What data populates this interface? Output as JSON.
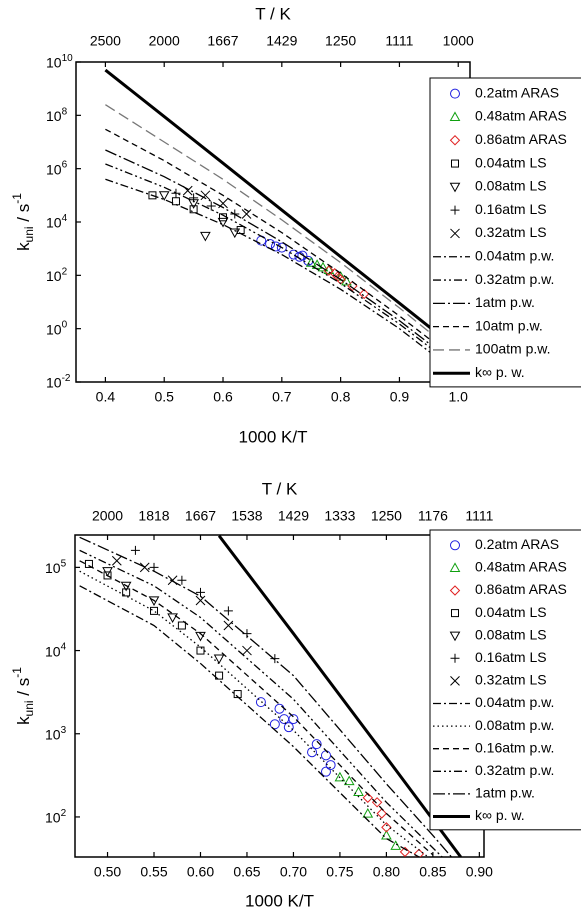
{
  "chart_data": [
    {
      "type": "scatter-line",
      "log_y": true,
      "legend": "upper right",
      "x2label": "T / K",
      "xlabel": "1000 K/T",
      "ylabel": {
        "text": "k",
        "sub": "uni",
        "mid": " / s",
        "sup": "-1"
      },
      "xlim": [
        0.35,
        1.02
      ],
      "ylim": [
        0.01,
        10000000000
      ],
      "xticks": [
        0.4,
        0.5,
        0.6,
        0.7,
        0.8,
        0.9,
        {
          "value": 1,
          "label": "1.0"
        }
      ],
      "x2ticks": [
        {
          "value": 0.4,
          "label": "2500"
        },
        {
          "value": 0.5,
          "label": "2000"
        },
        {
          "value": 0.6,
          "label": "1667"
        },
        {
          "value": 0.7,
          "label": "1429"
        },
        {
          "value": 0.8,
          "label": "1250"
        },
        {
          "value": 0.9,
          "label": "1111"
        },
        {
          "value": 1,
          "label": "1000"
        }
      ],
      "yticks": [
        {
          "value": 0.01,
          "label": "10",
          "exponent": "-2"
        },
        {
          "value": 1,
          "label": "10",
          "exponent": "0"
        },
        {
          "value": 100,
          "label": "10",
          "exponent": "2"
        },
        {
          "value": 10000,
          "label": "10",
          "exponent": "4"
        },
        {
          "value": 1000000,
          "label": "10",
          "exponent": "6"
        },
        {
          "value": 100000000,
          "label": "10",
          "exponent": "8"
        },
        {
          "value": 10000000000,
          "label": "10",
          "exponent": "10"
        }
      ],
      "series": [
        {
          "name": "0.2atm ARAS",
          "color": "#2020e0",
          "marker": "circle",
          "x": [
            0.665,
            0.68,
            0.69,
            0.7,
            0.72,
            0.73,
            0.735,
            0.745
          ],
          "values": [
            2000,
            1500,
            1200,
            1100,
            600,
            500,
            550,
            350
          ]
        },
        {
          "name": "0.48atm ARAS",
          "color": "#10a010",
          "marker": "triangle",
          "x": [
            0.75,
            0.76,
            0.77,
            0.78,
            0.8,
            0.81
          ],
          "values": [
            300,
            250,
            200,
            160,
            90,
            60
          ]
        },
        {
          "name": "0.86atm ARAS",
          "color": "#e02020",
          "marker": "diamond",
          "x": [
            0.78,
            0.79,
            0.795,
            0.8,
            0.82,
            0.84
          ],
          "values": [
            150,
            120,
            90,
            70,
            40,
            20
          ]
        },
        {
          "name": "0.04atm LS",
          "color": "#000000",
          "marker": "square",
          "x": [
            0.48,
            0.52,
            0.55,
            0.6,
            0.63
          ],
          "values": [
            100000,
            60000,
            30000,
            15000,
            5000
          ]
        },
        {
          "name": "0.08atm LS",
          "color": "#000000",
          "marker": "triangle-down",
          "x": [
            0.5,
            0.55,
            0.57,
            0.6,
            0.62
          ],
          "values": [
            100000,
            50000,
            3000,
            10000,
            4000
          ]
        },
        {
          "name": "0.16atm LS",
          "color": "#000000",
          "marker": "plus",
          "x": [
            0.52,
            0.55,
            0.58,
            0.62
          ],
          "values": [
            120000,
            80000,
            40000,
            20000
          ]
        },
        {
          "name": "0.32atm LS",
          "color": "#000000",
          "marker": "x",
          "x": [
            0.54,
            0.57,
            0.6,
            0.64
          ],
          "values": [
            150000,
            100000,
            50000,
            20000
          ]
        },
        {
          "name": "0.04atm p.w.",
          "color": "#000000",
          "dash": "dashdot",
          "x": [
            0.4,
            0.5,
            0.6,
            0.7,
            0.8,
            0.9,
            1
          ],
          "values": [
            400000,
            70000,
            8000,
            600,
            30,
            1,
            0.02
          ]
        },
        {
          "name": "0.32atm p.w.",
          "color": "#000000",
          "dash": "dashdotdot",
          "x": [
            0.4,
            0.5,
            0.6,
            0.7,
            0.8,
            0.9,
            1
          ],
          "values": [
            1500000,
            200000,
            18000,
            1100,
            50,
            1.5,
            0.03
          ]
        },
        {
          "name": "1atm p.w.",
          "color": "#000000",
          "dash": "longdashdot",
          "x": [
            0.4,
            0.5,
            0.6,
            0.7,
            0.8,
            0.9,
            1
          ],
          "values": [
            5000000,
            500000,
            35000,
            1800,
            70,
            2,
            0.04
          ]
        },
        {
          "name": "10atm p.w.",
          "color": "#000000",
          "dash": "dashed",
          "x": [
            0.4,
            0.5,
            0.6,
            0.7,
            0.8,
            0.9,
            1
          ],
          "values": [
            30000000,
            2000000,
            100000,
            4000,
            120,
            3,
            0.06
          ]
        },
        {
          "name": "100atm p.w.",
          "color": "#777777",
          "dash": "longdash",
          "x": [
            0.4,
            0.5,
            0.6,
            0.7,
            0.8,
            0.9,
            1
          ],
          "values": [
            250000000,
            10000000,
            400000,
            12000,
            300,
            6,
            0.1
          ]
        },
        {
          "name": "k∞ p. w.",
          "color": "#000000",
          "dash": "solid",
          "x": [
            0.4,
            0.5,
            0.6,
            0.7,
            0.8,
            0.9,
            1
          ],
          "values": [
            5000000000,
            90000000,
            1600000,
            28000,
            500,
            9,
            0.16
          ]
        }
      ]
    },
    {
      "type": "scatter-line",
      "log_y": true,
      "legend": "upper right",
      "x2label": "T / K",
      "xlabel": "1000 K/T",
      "ylabel": {
        "text": "k",
        "sub": "uni",
        "mid": " / s",
        "sup": "-1"
      },
      "xlim": [
        0.465,
        0.905
      ],
      "ylim": [
        33,
        245000
      ],
      "xticks": [
        {
          "value": 0.5,
          "label": "0.50"
        },
        0.55,
        {
          "value": 0.6,
          "label": "0.60"
        },
        0.65,
        {
          "value": 0.7,
          "label": "0.70"
        },
        0.75,
        {
          "value": 0.8,
          "label": "0.80"
        },
        0.85,
        {
          "value": 0.9,
          "label": "0.90"
        }
      ],
      "x2ticks": [
        {
          "value": 0.5,
          "label": "2000"
        },
        {
          "value": 0.55,
          "label": "1818"
        },
        {
          "value": 0.6,
          "label": "1667"
        },
        {
          "value": 0.65,
          "label": "1538"
        },
        {
          "value": 0.7,
          "label": "1429"
        },
        {
          "value": 0.75,
          "label": "1333"
        },
        {
          "value": 0.8,
          "label": "1250"
        },
        {
          "value": 0.85,
          "label": "1176"
        },
        {
          "value": 0.9,
          "label": "1111"
        }
      ],
      "yticks": [
        {
          "value": 100,
          "label": "10",
          "exponent": "2"
        },
        {
          "value": 1000,
          "label": "10",
          "exponent": "3"
        },
        {
          "value": 10000,
          "label": "10",
          "exponent": "4"
        },
        {
          "value": 100000,
          "label": "10",
          "exponent": "5"
        }
      ],
      "series": [
        {
          "name": "0.2atm ARAS",
          "color": "#2020e0",
          "marker": "circle",
          "x": [
            0.665,
            0.68,
            0.685,
            0.69,
            0.695,
            0.7,
            0.72,
            0.725,
            0.735,
            0.735,
            0.74
          ],
          "values": [
            2400,
            1300,
            2000,
            1500,
            1200,
            1500,
            600,
            750,
            550,
            350,
            420
          ]
        },
        {
          "name": "0.48atm ARAS",
          "color": "#10a010",
          "marker": "triangle",
          "x": [
            0.75,
            0.76,
            0.77,
            0.78,
            0.8,
            0.81
          ],
          "values": [
            300,
            270,
            200,
            110,
            60,
            45
          ]
        },
        {
          "name": "0.86atm ARAS",
          "color": "#e02020",
          "marker": "diamond",
          "x": [
            0.78,
            0.79,
            0.795,
            0.8,
            0.82,
            0.835
          ],
          "values": [
            170,
            150,
            110,
            75,
            38,
            36
          ]
        },
        {
          "name": "0.04atm LS",
          "color": "#000000",
          "marker": "square",
          "x": [
            0.48,
            0.5,
            0.52,
            0.55,
            0.58,
            0.6,
            0.62,
            0.64
          ],
          "values": [
            110000,
            80000,
            50000,
            30000,
            20000,
            10000,
            5000,
            3000
          ]
        },
        {
          "name": "0.08atm LS",
          "color": "#000000",
          "marker": "triangle-down",
          "x": [
            0.5,
            0.52,
            0.55,
            0.57,
            0.6,
            0.62
          ],
          "values": [
            90000,
            60000,
            40000,
            25000,
            15000,
            8000
          ]
        },
        {
          "name": "0.16atm LS",
          "color": "#000000",
          "marker": "plus",
          "x": [
            0.53,
            0.55,
            0.58,
            0.6,
            0.63,
            0.65,
            0.68
          ],
          "values": [
            160000,
            100000,
            70000,
            50000,
            30000,
            16000,
            8000
          ]
        },
        {
          "name": "0.32atm LS",
          "color": "#000000",
          "marker": "x",
          "x": [
            0.51,
            0.54,
            0.57,
            0.6,
            0.63,
            0.65
          ],
          "values": [
            120000,
            100000,
            70000,
            40000,
            20000,
            10000
          ]
        },
        {
          "name": "0.04atm p.w.",
          "color": "#000000",
          "dash": "dashdot",
          "x": [
            0.47,
            0.55,
            0.6,
            0.7,
            0.8,
            0.835
          ],
          "values": [
            60000,
            20000,
            7000,
            700,
            55,
            33
          ]
        },
        {
          "name": "0.08atm p.w.",
          "color": "#000000",
          "dash": "dotted",
          "x": [
            0.47,
            0.55,
            0.6,
            0.7,
            0.8,
            0.845
          ],
          "values": [
            90000,
            30000,
            11000,
            1100,
            80,
            33
          ]
        },
        {
          "name": "0.16atm p.w.",
          "color": "#000000",
          "dash": "dashed",
          "x": [
            0.47,
            0.55,
            0.6,
            0.7,
            0.8,
            0.85
          ],
          "values": [
            120000,
            40000,
            16000,
            1600,
            110,
            35
          ]
        },
        {
          "name": "0.32atm p.w.",
          "color": "#000000",
          "dash": "dashdotdot",
          "x": [
            0.47,
            0.55,
            0.6,
            0.7,
            0.8,
            0.86
          ],
          "values": [
            160000,
            60000,
            25000,
            2600,
            150,
            33
          ]
        },
        {
          "name": "1atm p.w.",
          "color": "#000000",
          "dash": "longdashdot",
          "x": [
            0.47,
            0.55,
            0.6,
            0.7,
            0.8,
            0.85,
            0.87
          ],
          "values": [
            230000,
            90000,
            45000,
            5000,
            250,
            60,
            33
          ]
        },
        {
          "name": "k∞ p. w.",
          "color": "#000000",
          "dash": "solid",
          "x": [
            0.62,
            0.7,
            0.8,
            0.88
          ],
          "values": [
            240000,
            16000,
            520,
            33
          ]
        }
      ]
    }
  ]
}
